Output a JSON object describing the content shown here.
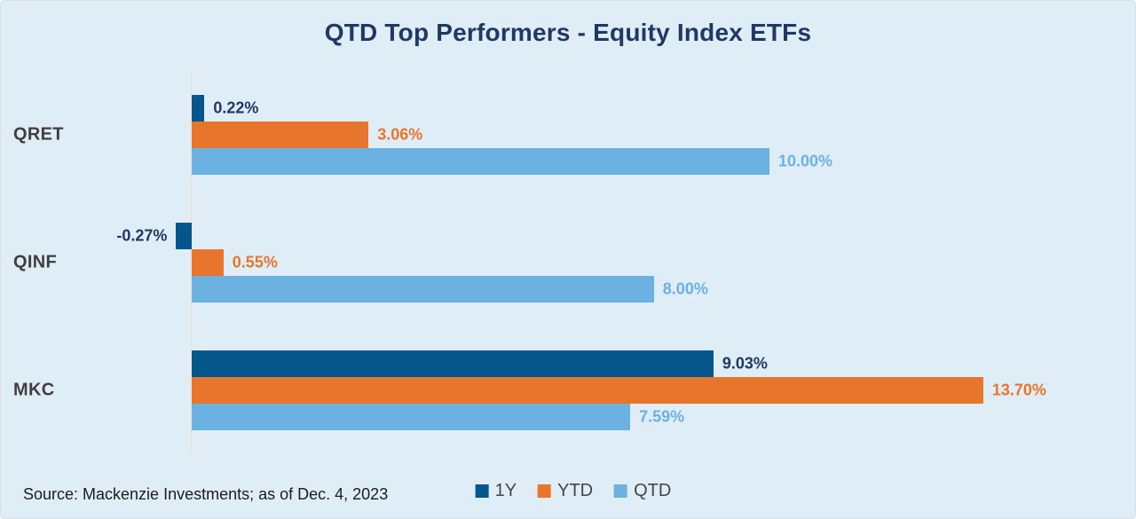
{
  "title": "QTD Top Performers - Equity Index ETFs",
  "source_note": "Source: Mackenzie Investments; as of Dec. 4, 2023",
  "colors": {
    "background": "#dfedf7",
    "title_text": "#1f3864",
    "category_text": "#3f3f3f",
    "legend_text": "#454545",
    "source_text": "#1c1c1c",
    "axis_line": "#e8e5e1",
    "series_1y": "#05568a",
    "series_ytd": "#e7752b",
    "series_qtd": "#6bb1e1",
    "label_1y": "#1f3864"
  },
  "chart_data": {
    "type": "bar",
    "orientation": "horizontal",
    "title": "QTD Top Performers - Equity Index ETFs",
    "categories": [
      "QRET",
      "QINF",
      "MKC"
    ],
    "series": [
      {
        "name": "1Y",
        "color": "#05568a",
        "label_color": "#1f3864",
        "values": [
          0.22,
          -0.27,
          9.03
        ],
        "labels": [
          "0.22%",
          "-0.27%",
          "9.03%"
        ]
      },
      {
        "name": "YTD",
        "color": "#e7752b",
        "label_color": "#e7752b",
        "values": [
          3.06,
          0.55,
          13.7
        ],
        "labels": [
          "3.06%",
          "0.55%",
          "13.70%"
        ]
      },
      {
        "name": "QTD",
        "color": "#6bb1e1",
        "label_color": "#6bb1e1",
        "values": [
          10.0,
          8.0,
          7.59
        ],
        "labels": [
          "10.00%",
          "8.00%",
          "7.59%"
        ]
      }
    ],
    "xlabel": "",
    "ylabel": "",
    "xlim": [
      -0.5,
      16.3
    ],
    "baseline_value": 0,
    "x_axis_tick_labels_visible": false,
    "grid": false,
    "value_labels": true,
    "legend_position": "bottom"
  }
}
